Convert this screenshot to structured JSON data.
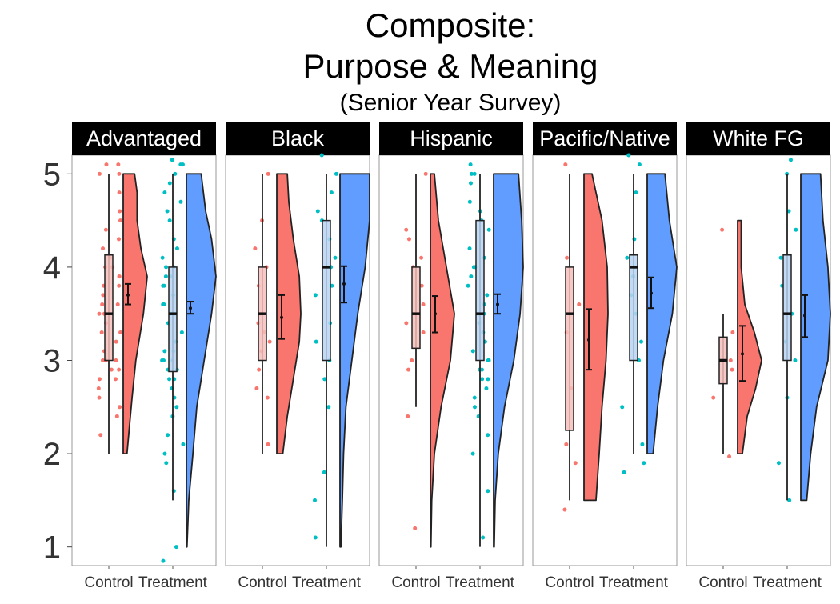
{
  "chart_data": {
    "type": "raincloud",
    "title": "Composite:",
    "title_line2": "Purpose & Meaning",
    "subtitle": "(Senior Year Survey)",
    "xlabel": "",
    "ylabel": "",
    "ylim": [
      0.8,
      5.2
    ],
    "yticks": [
      "1",
      "2",
      "3",
      "4",
      "5"
    ],
    "ytick_values": [
      1,
      2,
      3,
      4,
      5
    ],
    "categories": [
      "Control",
      "Treatment"
    ],
    "legend": "none",
    "grid": false,
    "colors": {
      "Control": "#F8766D",
      "Treatment": "#619CFF",
      "Control_points": "#F8766D",
      "Treatment_points": "#00BFC4",
      "strip_bg": "#000000",
      "strip_text": "#ffffff"
    },
    "panels": [
      {
        "name": "Advantaged",
        "groups": [
          {
            "name": "Control",
            "box": {
              "min": 2.0,
              "q1": 3.0,
              "median": 3.5,
              "q3": 4.13,
              "max": 5.0
            },
            "mean": 3.7,
            "ci": [
              3.6,
              3.82
            ],
            "density_range": [
              2.0,
              5.0
            ],
            "density": [
              [
                2.0,
                0.15
              ],
              [
                2.3,
                0.25
              ],
              [
                2.6,
                0.35
              ],
              [
                3.0,
                0.5
              ],
              [
                3.5,
                0.8
              ],
              [
                3.9,
                0.95
              ],
              [
                4.2,
                0.7
              ],
              [
                4.5,
                0.55
              ],
              [
                4.8,
                0.55
              ],
              [
                5.0,
                0.45
              ]
            ],
            "points": [
              2.2,
              2.4,
              2.5,
              2.6,
              2.7,
              2.8,
              2.8,
              2.9,
              2.9,
              3.0,
              3.0,
              3.0,
              3.1,
              3.2,
              3.3,
              3.3,
              3.4,
              3.5,
              3.5,
              3.6,
              3.6,
              3.7,
              3.8,
              3.8,
              3.9,
              3.9,
              4.0,
              4.0,
              4.1,
              4.2,
              4.3,
              4.4,
              4.5,
              4.6,
              4.8,
              5.0,
              5.0,
              5.1,
              5.1
            ]
          },
          {
            "name": "Treatment",
            "box": {
              "min": 1.5,
              "q1": 2.88,
              "median": 3.5,
              "q3": 4.0,
              "max": 5.0
            },
            "mean": 3.56,
            "ci": [
              3.5,
              3.63
            ],
            "density_range": [
              1.0,
              5.0
            ],
            "density": [
              [
                1.0,
                0.02
              ],
              [
                1.5,
                0.08
              ],
              [
                2.0,
                0.22
              ],
              [
                2.5,
                0.35
              ],
              [
                3.0,
                0.6
              ],
              [
                3.5,
                0.85
              ],
              [
                3.9,
                1.0
              ],
              [
                4.3,
                0.85
              ],
              [
                4.6,
                0.65
              ],
              [
                5.0,
                0.5
              ]
            ],
            "points": [
              0.85,
              1.0,
              1.6,
              1.9,
              2.0,
              2.1,
              2.2,
              2.4,
              2.5,
              2.6,
              2.7,
              2.8,
              2.8,
              2.9,
              2.9,
              3.0,
              3.0,
              3.0,
              3.1,
              3.1,
              3.2,
              3.3,
              3.4,
              3.5,
              3.5,
              3.6,
              3.6,
              3.7,
              3.8,
              3.8,
              3.9,
              3.9,
              4.0,
              4.0,
              4.1,
              4.2,
              4.3,
              4.5,
              4.6,
              4.7,
              4.8,
              4.9,
              5.0,
              5.1,
              5.1,
              5.15
            ]
          }
        ]
      },
      {
        "name": "Black",
        "groups": [
          {
            "name": "Control",
            "box": {
              "min": 2.0,
              "q1": 3.0,
              "median": 3.5,
              "q3": 4.0,
              "max": 5.0
            },
            "mean": 3.46,
            "ci": [
              3.23,
              3.7
            ],
            "density_range": [
              2.0,
              5.0
            ],
            "density": [
              [
                2.0,
                0.2
              ],
              [
                2.4,
                0.35
              ],
              [
                2.8,
                0.55
              ],
              [
                3.2,
                0.75
              ],
              [
                3.5,
                0.8
              ],
              [
                3.9,
                0.75
              ],
              [
                4.3,
                0.55
              ],
              [
                4.7,
                0.4
              ],
              [
                5.0,
                0.35
              ]
            ],
            "points": [
              2.1,
              2.6,
              2.7,
              2.9,
              3.1,
              3.2,
              3.3,
              3.4,
              3.5,
              3.8,
              4.0,
              4.2,
              4.5,
              5.0
            ]
          },
          {
            "name": "Treatment",
            "box": {
              "min": 1.0,
              "q1": 3.0,
              "median": 4.0,
              "q3": 4.5,
              "max": 5.0
            },
            "mean": 3.82,
            "ci": [
              3.62,
              4.01
            ],
            "density_range": [
              1.0,
              5.0
            ],
            "density": [
              [
                1.0,
                0.03
              ],
              [
                1.5,
                0.08
              ],
              [
                2.0,
                0.12
              ],
              [
                2.5,
                0.2
              ],
              [
                3.0,
                0.4
              ],
              [
                3.5,
                0.6
              ],
              [
                4.0,
                0.85
              ],
              [
                4.5,
                1.0
              ],
              [
                5.0,
                1.0
              ]
            ],
            "points": [
              1.1,
              1.5,
              1.8,
              2.5,
              2.8,
              3.0,
              3.2,
              3.4,
              3.7,
              3.8,
              4.0,
              4.1,
              4.3,
              4.5,
              4.6,
              4.8,
              5.0,
              5.2
            ]
          }
        ]
      },
      {
        "name": "Hispanic",
        "groups": [
          {
            "name": "Control",
            "box": {
              "min": 2.5,
              "q1": 3.13,
              "median": 3.5,
              "q3": 4.0,
              "max": 5.0
            },
            "mean": 3.5,
            "ci": [
              3.3,
              3.69
            ],
            "density_range": [
              1.0,
              5.0
            ],
            "density": [
              [
                1.0,
                0.02
              ],
              [
                1.5,
                0.05
              ],
              [
                2.0,
                0.15
              ],
              [
                2.5,
                0.4
              ],
              [
                3.0,
                0.75
              ],
              [
                3.5,
                0.9
              ],
              [
                4.0,
                0.6
              ],
              [
                4.5,
                0.3
              ],
              [
                5.0,
                0.15
              ]
            ],
            "points": [
              1.2,
              2.4,
              2.9,
              3.0,
              3.3,
              3.4,
              3.5,
              3.6,
              3.8,
              4.0,
              4.1,
              4.3,
              4.4,
              5.0
            ]
          },
          {
            "name": "Treatment",
            "box": {
              "min": 1.0,
              "q1": 3.0,
              "median": 3.5,
              "q3": 4.5,
              "max": 5.0
            },
            "mean": 3.6,
            "ci": [
              3.5,
              3.71
            ],
            "density_range": [
              1.0,
              5.0
            ],
            "density": [
              [
                1.0,
                0.02
              ],
              [
                1.5,
                0.05
              ],
              [
                2.0,
                0.15
              ],
              [
                2.5,
                0.35
              ],
              [
                3.0,
                0.65
              ],
              [
                3.5,
                0.85
              ],
              [
                4.0,
                0.95
              ],
              [
                4.5,
                0.9
              ],
              [
                5.0,
                0.8
              ]
            ],
            "points": [
              1.1,
              1.6,
              2.0,
              2.2,
              2.4,
              2.5,
              2.6,
              2.7,
              2.8,
              2.8,
              2.9,
              2.9,
              3.0,
              3.0,
              3.1,
              3.2,
              3.3,
              3.4,
              3.5,
              3.5,
              3.6,
              3.7,
              3.8,
              3.9,
              4.0,
              4.0,
              4.1,
              4.2,
              4.4,
              4.5,
              4.6,
              4.7,
              4.9,
              5.0,
              5.0,
              5.1
            ]
          }
        ]
      },
      {
        "name": "Pacific/Native",
        "groups": [
          {
            "name": "Control",
            "box": {
              "min": 1.5,
              "q1": 2.25,
              "median": 3.5,
              "q3": 4.0,
              "max": 5.0
            },
            "mean": 3.22,
            "ci": [
              2.9,
              3.55
            ],
            "density_range": [
              1.5,
              5.0
            ],
            "density": [
              [
                1.5,
                0.3
              ],
              [
                2.0,
                0.38
              ],
              [
                2.5,
                0.45
              ],
              [
                3.0,
                0.55
              ],
              [
                3.5,
                0.6
              ],
              [
                4.0,
                0.58
              ],
              [
                4.5,
                0.45
              ],
              [
                5.0,
                0.2
              ]
            ],
            "points": [
              1.4,
              1.9,
              2.1,
              2.7,
              3.3,
              3.6,
              4.1,
              5.1
            ]
          },
          {
            "name": "Treatment",
            "box": {
              "min": 2.0,
              "q1": 3.0,
              "median": 4.0,
              "q3": 4.13,
              "max": 5.0
            },
            "mean": 3.72,
            "ci": [
              3.56,
              3.89
            ],
            "density_range": [
              2.0,
              5.0
            ],
            "density": [
              [
                2.0,
                0.2
              ],
              [
                2.5,
                0.35
              ],
              [
                3.0,
                0.55
              ],
              [
                3.5,
                0.85
              ],
              [
                4.0,
                1.0
              ],
              [
                4.5,
                0.75
              ],
              [
                5.0,
                0.6
              ]
            ],
            "points": [
              1.8,
              1.9,
              2.1,
              2.5,
              3.0,
              3.2,
              3.5,
              3.7,
              3.9,
              4.0,
              4.1,
              4.3,
              4.8,
              5.1,
              5.2
            ]
          }
        ]
      },
      {
        "name": "White FG",
        "groups": [
          {
            "name": "Control",
            "box": {
              "min": 2.0,
              "q1": 2.75,
              "median": 3.0,
              "q3": 3.25,
              "max": 3.5
            },
            "mean": 3.07,
            "ci": [
              2.78,
              3.37
            ],
            "density_range": [
              2.0,
              4.5
            ],
            "density": [
              [
                2.0,
                0.2
              ],
              [
                2.4,
                0.4
              ],
              [
                2.7,
                0.75
              ],
              [
                3.0,
                1.0
              ],
              [
                3.3,
                0.7
              ],
              [
                3.6,
                0.3
              ],
              [
                4.0,
                0.15
              ],
              [
                4.5,
                0.15
              ]
            ],
            "points": [
              1.97,
              2.6,
              2.9,
              3.0,
              3.3,
              4.4
            ]
          },
          {
            "name": "Treatment",
            "box": {
              "min": 1.5,
              "q1": 3.0,
              "median": 3.5,
              "q3": 4.13,
              "max": 5.0
            },
            "mean": 3.48,
            "ci": [
              3.25,
              3.7
            ],
            "density_range": [
              1.5,
              5.0
            ],
            "density": [
              [
                1.5,
                0.12
              ],
              [
                2.0,
                0.2
              ],
              [
                2.5,
                0.32
              ],
              [
                3.0,
                0.55
              ],
              [
                3.5,
                0.6
              ],
              [
                4.0,
                0.55
              ],
              [
                4.5,
                0.45
              ],
              [
                5.0,
                0.4
              ]
            ],
            "points": [
              1.5,
              1.9,
              2.6,
              3.0,
              3.2,
              3.5,
              3.8,
              4.1,
              4.4,
              4.6,
              5.0,
              5.15
            ]
          }
        ]
      }
    ]
  }
}
